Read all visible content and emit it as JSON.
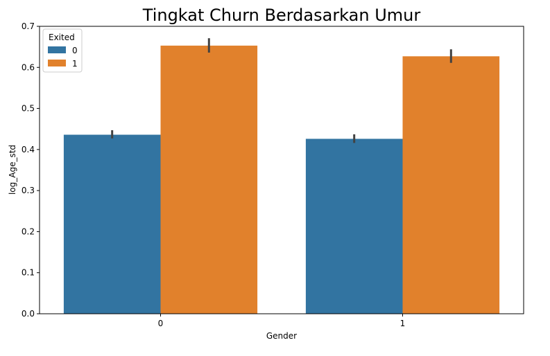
{
  "chart_data": {
    "type": "bar",
    "title": "Tingkat Churn Berdasarkan Umur",
    "xlabel": "Gender",
    "ylabel": "log_Age_std",
    "categories": [
      "0",
      "1"
    ],
    "ylim": [
      0,
      0.7
    ],
    "yticks": [
      "0.0",
      "0.1",
      "0.2",
      "0.3",
      "0.4",
      "0.5",
      "0.6",
      "0.7"
    ],
    "grid": false,
    "legend": {
      "title": "Exited",
      "placement": "top-left"
    },
    "series": [
      {
        "name": "0",
        "color": "#3274a1",
        "values": [
          0.436,
          0.426
        ],
        "error_low": [
          0.427,
          0.416
        ],
        "error_high": [
          0.447,
          0.437
        ]
      },
      {
        "name": "1",
        "color": "#e1812c",
        "values": [
          0.653,
          0.627
        ],
        "error_low": [
          0.636,
          0.611
        ],
        "error_high": [
          0.671,
          0.644
        ]
      }
    ]
  }
}
